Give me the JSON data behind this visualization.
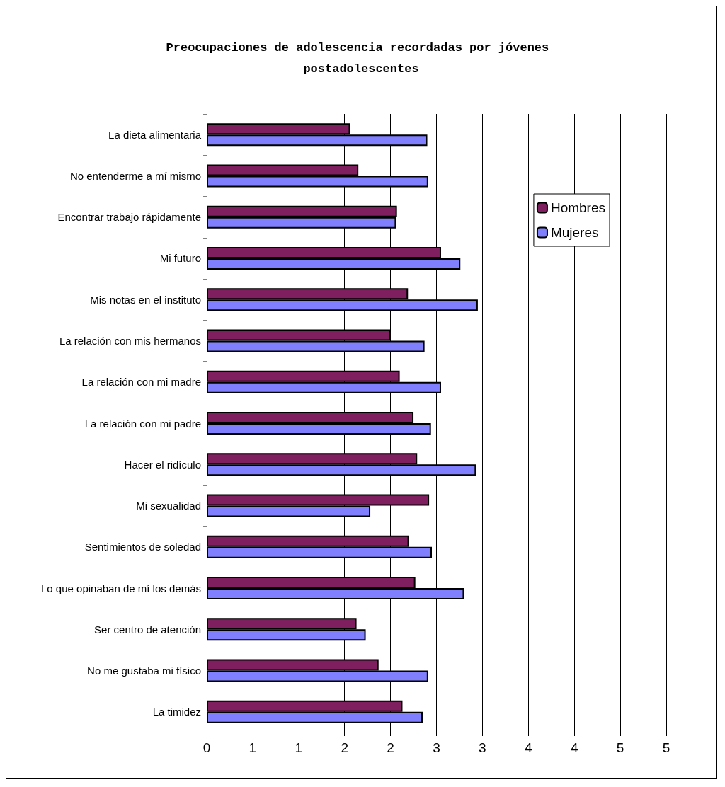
{
  "chart_data": {
    "type": "bar",
    "orientation": "horizontal",
    "title": "Preocupaciones de adolescencia recordadas por jóvenes postadolescentes",
    "categories": [
      "La dieta alimentaria",
      "No entenderme a mí mismo",
      "Encontrar trabajo rápidamente",
      "Mi futuro",
      "Mis notas en el instituto",
      "La relación con mis hermanos",
      "La relación con mi madre",
      "La relación con mi padre",
      "Hacer el ridículo",
      "Mi sexualidad",
      "Sentimientos de soledad",
      "Lo que opinaban de mí los demás",
      "Ser centro de atención",
      "No me gustaba mi físico",
      "La timidez"
    ],
    "series": [
      {
        "name": "Hombres",
        "color": "#7f1f5f",
        "values": [
          1.56,
          1.65,
          2.07,
          2.55,
          2.19,
          2.0,
          2.1,
          2.25,
          2.29,
          2.42,
          2.2,
          2.27,
          1.63,
          1.87,
          2.13
        ]
      },
      {
        "name": "Mujeres",
        "color": "#8080ff",
        "values": [
          2.4,
          2.41,
          2.06,
          2.76,
          2.95,
          2.37,
          2.55,
          2.44,
          2.93,
          1.78,
          2.45,
          2.8,
          1.73,
          2.41,
          2.35
        ]
      }
    ],
    "xlim": [
      0,
      5
    ],
    "xticks": [
      0,
      {
        "value": 0.5,
        "label": "1"
      },
      1,
      {
        "value": 1.5,
        "label": "2"
      },
      2,
      {
        "value": 2.5,
        "label": "3"
      },
      3,
      {
        "value": 3.5,
        "label": "4"
      },
      4,
      {
        "value": 4.5,
        "label": "5"
      },
      5
    ],
    "grid": "x",
    "legend": "top right"
  }
}
